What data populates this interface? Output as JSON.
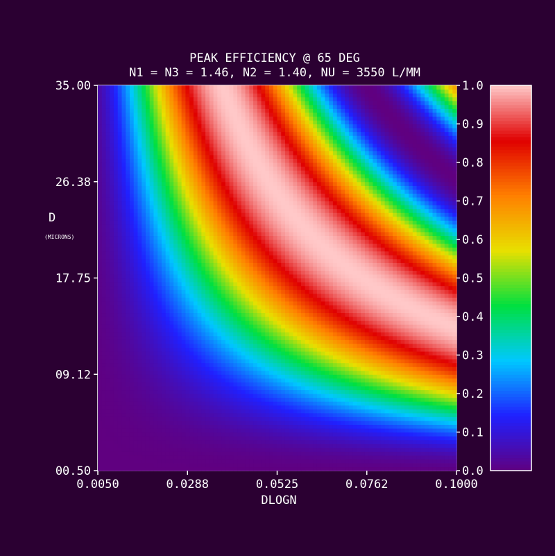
{
  "chart_data": {
    "type": "heatmap",
    "title": "PEAK EFFICIENCY @ 65 DEG",
    "subtitle": "N1 = N3 = 1.46, N2 = 1.40, NU = 3550 L/MM",
    "xlabel": "DLOGN",
    "ylabel": "D",
    "ylabel_unit": "(MICRONS)",
    "xlim": [
      0.005,
      0.1
    ],
    "ylim": [
      0.5,
      35.0
    ],
    "x_ticks": [
      "0.0050",
      "0.0288",
      "0.0525",
      "0.0762",
      "0.1000"
    ],
    "y_ticks": [
      "00.50",
      "09.12",
      "17.75",
      "26.38",
      "35.00"
    ],
    "colorbar": {
      "range": [
        0.0,
        1.0
      ],
      "ticks": [
        "0.0",
        "0.1",
        "0.2",
        "0.3",
        "0.4",
        "0.5",
        "0.6",
        "0.7",
        "0.8",
        "0.9",
        "1.0"
      ]
    },
    "grid": {
      "cols": 90,
      "rows": 100
    },
    "model": "efficiency = sin^2(k * DLOGN * D)",
    "k": 1.18,
    "peak_value": 1.0,
    "colormap": [
      "#600080",
      "#2020ff",
      "#00c8ff",
      "#00e040",
      "#e8e000",
      "#ff8000",
      "#e00000",
      "#ffc8c8"
    ]
  }
}
